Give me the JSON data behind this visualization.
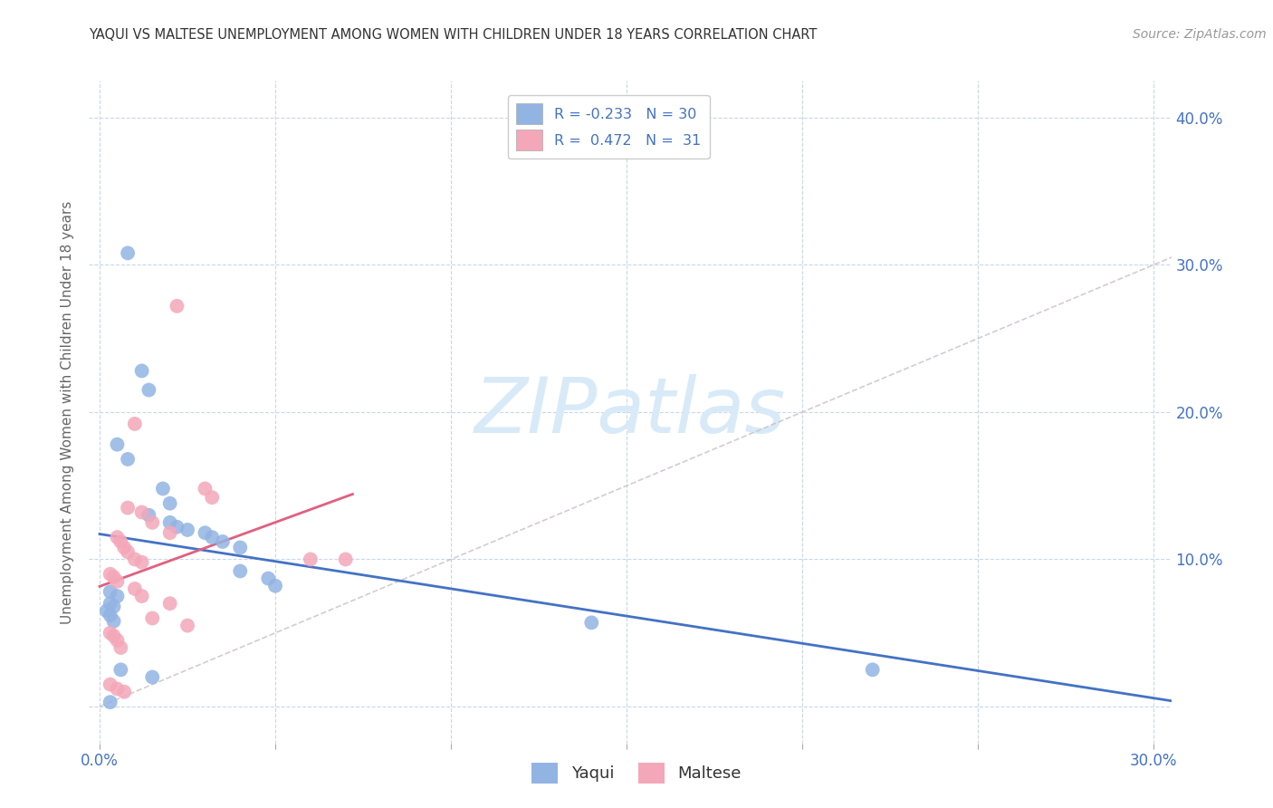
{
  "title": "YAQUI VS MALTESE UNEMPLOYMENT AMONG WOMEN WITH CHILDREN UNDER 18 YEARS CORRELATION CHART",
  "source": "Source: ZipAtlas.com",
  "ylabel": "Unemployment Among Women with Children Under 18 years",
  "xlim": [
    -0.003,
    0.305
  ],
  "ylim": [
    -0.025,
    0.425
  ],
  "yticks": [
    0.0,
    0.1,
    0.2,
    0.3,
    0.4
  ],
  "ytick_labels": [
    "",
    "10.0%",
    "20.0%",
    "30.0%",
    "40.0%"
  ],
  "xticks": [
    0.0,
    0.05,
    0.1,
    0.15,
    0.2,
    0.25,
    0.3
  ],
  "xtick_labels": [
    "0.0%",
    "",
    "",
    "",
    "",
    "",
    "30.0%"
  ],
  "legend_yaqui": {
    "R": "-0.233",
    "N": "30"
  },
  "legend_maltese": {
    "R": "0.472",
    "N": "31"
  },
  "yaqui_color": "#92b4e3",
  "maltese_color": "#f4a7b9",
  "yaqui_line_color": "#4472c4",
  "maltese_line_color": "#e06080",
  "diagonal_color": "#c8c0c8",
  "watermark_text": "ZIPatlas",
  "watermark_color": "#d8eaf8",
  "tick_color": "#4472c4",
  "grid_color": "#c8d8e8",
  "yaqui_points": [
    [
      0.008,
      0.308
    ],
    [
      0.012,
      0.228
    ],
    [
      0.014,
      0.215
    ],
    [
      0.005,
      0.178
    ],
    [
      0.008,
      0.168
    ],
    [
      0.018,
      0.148
    ],
    [
      0.02,
      0.138
    ],
    [
      0.014,
      0.13
    ],
    [
      0.02,
      0.125
    ],
    [
      0.022,
      0.122
    ],
    [
      0.025,
      0.12
    ],
    [
      0.03,
      0.118
    ],
    [
      0.032,
      0.115
    ],
    [
      0.035,
      0.112
    ],
    [
      0.04,
      0.108
    ],
    [
      0.04,
      0.092
    ],
    [
      0.048,
      0.087
    ],
    [
      0.05,
      0.082
    ],
    [
      0.003,
      0.078
    ],
    [
      0.005,
      0.075
    ],
    [
      0.003,
      0.07
    ],
    [
      0.004,
      0.068
    ],
    [
      0.002,
      0.065
    ],
    [
      0.003,
      0.062
    ],
    [
      0.004,
      0.058
    ],
    [
      0.006,
      0.025
    ],
    [
      0.015,
      0.02
    ],
    [
      0.14,
      0.057
    ],
    [
      0.22,
      0.025
    ],
    [
      0.003,
      0.003
    ]
  ],
  "maltese_points": [
    [
      0.01,
      0.192
    ],
    [
      0.022,
      0.272
    ],
    [
      0.03,
      0.148
    ],
    [
      0.032,
      0.142
    ],
    [
      0.008,
      0.135
    ],
    [
      0.012,
      0.132
    ],
    [
      0.015,
      0.125
    ],
    [
      0.02,
      0.118
    ],
    [
      0.005,
      0.115
    ],
    [
      0.006,
      0.112
    ],
    [
      0.007,
      0.108
    ],
    [
      0.008,
      0.105
    ],
    [
      0.01,
      0.1
    ],
    [
      0.012,
      0.098
    ],
    [
      0.06,
      0.1
    ],
    [
      0.07,
      0.1
    ],
    [
      0.003,
      0.09
    ],
    [
      0.004,
      0.088
    ],
    [
      0.005,
      0.085
    ],
    [
      0.01,
      0.08
    ],
    [
      0.012,
      0.075
    ],
    [
      0.02,
      0.07
    ],
    [
      0.015,
      0.06
    ],
    [
      0.025,
      0.055
    ],
    [
      0.003,
      0.05
    ],
    [
      0.004,
      0.048
    ],
    [
      0.005,
      0.045
    ],
    [
      0.006,
      0.04
    ],
    [
      0.003,
      0.015
    ],
    [
      0.005,
      0.012
    ],
    [
      0.007,
      0.01
    ]
  ],
  "yaqui_line_x": [
    0.0,
    0.305
  ],
  "maltese_line_x": [
    0.0,
    0.072
  ]
}
